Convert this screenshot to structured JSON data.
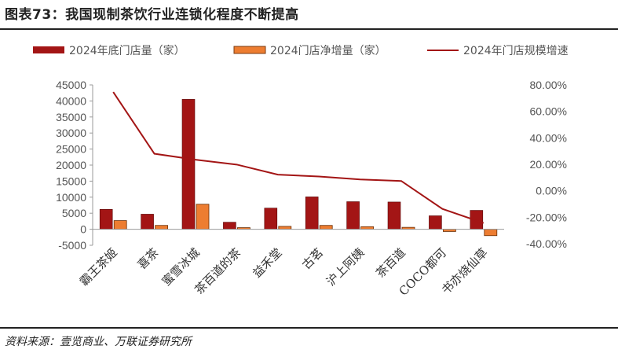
{
  "header": {
    "title": "图表73：我国现制茶饮行业连锁化程度不断提高"
  },
  "footer": {
    "source": "资料来源：壹览商业、万联证券研究所"
  },
  "colors": {
    "bar_primary": "#a31515",
    "bar_secondary": "#ed7d31",
    "line": "#a31515"
  },
  "chart_data": {
    "type": "bar",
    "categories": [
      "霸王茶姬",
      "喜茶",
      "蜜雪冰城",
      "茶百道的茶",
      "益禾堂",
      "古茗",
      "沪上阿姨",
      "茶百道",
      "COCO都可",
      "书亦烧仙草"
    ],
    "series": [
      {
        "name": "2024年底门店量（家）",
        "type": "bar",
        "axis": "left",
        "values": [
          6200,
          4700,
          40500,
          2200,
          6600,
          10100,
          8600,
          8500,
          4200,
          5900
        ]
      },
      {
        "name": "2024门店净增量（家）",
        "type": "bar",
        "axis": "left",
        "values": [
          2700,
          1200,
          7800,
          500,
          900,
          1200,
          800,
          600,
          -700,
          -2000
        ]
      },
      {
        "name": "2024年门店规模增速",
        "type": "line",
        "axis": "right",
        "values": [
          74.6,
          28.0,
          23.5,
          19.8,
          12.2,
          10.8,
          8.6,
          7.4,
          -13.7,
          -24.4
        ]
      }
    ],
    "yticks": [
      "45000",
      "40000",
      "35000",
      "30000",
      "25000",
      "20000",
      "15000",
      "10000",
      "5000",
      "0",
      "-5000"
    ],
    "y2ticks": [
      "80.00%",
      "60.00%",
      "40.00%",
      "20.00%",
      "0.00%",
      "-20.00%",
      "-40.00%"
    ],
    "ylim": [
      -5000,
      45000
    ],
    "y2lim": [
      -40,
      80
    ],
    "grid": false,
    "legend_position": "top"
  }
}
